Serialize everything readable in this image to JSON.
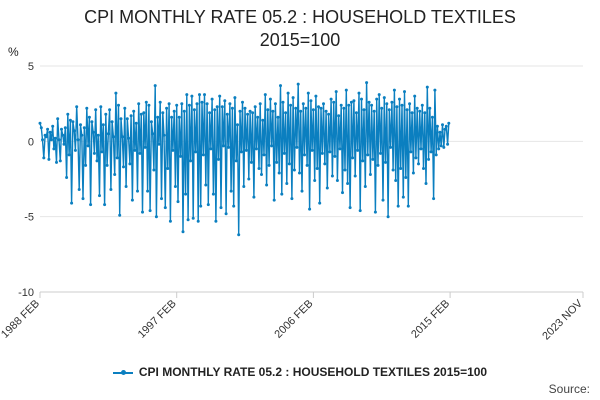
{
  "title_line1": "CPI MONTHLY RATE 05.2 : HOUSEHOLD TEXTILES",
  "title_line2": "2015=100",
  "unit": "%",
  "legend_label": "CPI MONTHLY RATE 05.2 : HOUSEHOLD TEXTILES 2015=100",
  "source": "Source:",
  "colors": {
    "series": "#0b7fc0",
    "grid": "#e6e6e6",
    "axis": "#cccccc",
    "text": "#333333"
  },
  "chart_data": {
    "type": "line",
    "title": "CPI MONTHLY RATE 05.2 : HOUSEHOLD TEXTILES 2015=100",
    "ylabel": "%",
    "ylim": [
      -10,
      5
    ],
    "yticks": [
      5,
      0,
      -5,
      -10
    ],
    "xlim": [
      "1988 FEB",
      "2023 NOV"
    ],
    "xticks": [
      "1988 FEB",
      "1997 FEB",
      "2006 FEB",
      "2015 FEB",
      "2023 NOV"
    ],
    "grid": true,
    "legend": "bottom",
    "series": [
      {
        "name": "CPI MONTHLY RATE 05.2 : HOUSEHOLD TEXTILES 2015=100",
        "start": "1988 FEB",
        "frequency": "monthly",
        "values": [
          1.2,
          0.9,
          0.1,
          -1.1,
          0.4,
          0.3,
          0.8,
          -1.2,
          0.6,
          0.1,
          1.0,
          -0.5,
          0.2,
          -1.4,
          1.5,
          0.1,
          -1.3,
          0.8,
          0.4,
          -0.2,
          0.9,
          -2.4,
          1.8,
          -0.9,
          1.4,
          -4.1,
          1.3,
          0.7,
          -0.6,
          2.3,
          0.1,
          -3.2,
          1.1,
          0.4,
          -3.8,
          0.9,
          -1.6,
          2.2,
          -0.3,
          1.6,
          -4.2,
          1.3,
          0.6,
          -0.8,
          2.1,
          -1.3,
          0.4,
          -3.6,
          2.3,
          -0.7,
          1.1,
          -4.2,
          1.8,
          -1.6,
          0.5,
          2.1,
          -3.2,
          1.3,
          0.3,
          -2.2,
          3.2,
          -1.1,
          2.4,
          -4.9,
          1.5,
          0.3,
          -1.7,
          2.2,
          -3.0,
          1.5,
          0.2,
          -1.5,
          1.7,
          -3.9,
          2.0,
          -0.6,
          1.2,
          -3.3,
          2.5,
          -0.8,
          1.8,
          -4.7,
          1.9,
          -0.4,
          2.6,
          -3.3,
          2.4,
          -4.6,
          1.3,
          0.5,
          -1.9,
          3.7,
          -5.0,
          1.6,
          -0.2,
          2.6,
          -3.8,
          1.9,
          0.4,
          -4.4,
          2.2,
          -1.8,
          2.5,
          -5.3,
          1.6,
          -0.6,
          2.0,
          -3.0,
          2.4,
          -4.0,
          1.6,
          -1.0,
          2.5,
          -6.0,
          2.0,
          -3.5,
          3.1,
          -5.2,
          2.4,
          -1.3,
          3.0,
          -5.1,
          2.1,
          -0.7,
          2.5,
          -5.3,
          3.1,
          -4.3,
          2.6,
          -0.9,
          3.1,
          -2.9,
          2.5,
          -4.2,
          1.9,
          -0.5,
          2.8,
          -3.5,
          2.1,
          -5.3,
          2.3,
          -1.2,
          3.0,
          -4.4,
          2.3,
          -0.3,
          2.7,
          -4.8,
          1.8,
          -0.4,
          2.5,
          -3.3,
          2.2,
          -4.3,
          2.9,
          -1.3,
          1.1,
          -6.2,
          2.0,
          -0.7,
          2.6,
          -3.0,
          2.2,
          -0.6,
          1.8,
          -2.5,
          2.0,
          -1.4,
          1.9,
          -3.7,
          2.3,
          -0.5,
          1.6,
          -1.8,
          2.5,
          -2.2,
          1.4,
          -0.9,
          3.1,
          -2.9,
          2.1,
          -1.6,
          2.8,
          -0.3,
          2.0,
          -3.9,
          2.5,
          -1.4,
          1.6,
          -2.1,
          3.7,
          -3.5,
          2.6,
          -0.8,
          1.9,
          -2.8,
          3.2,
          -1.5,
          2.4,
          -3.8,
          2.9,
          -1.9,
          2.2,
          -0.4,
          3.8,
          -2.1,
          2.0,
          -3.3,
          2.5,
          -0.9,
          2.2,
          -1.6,
          3.2,
          -4.5,
          2.7,
          -0.6,
          2.1,
          -2.6,
          3.0,
          -1.8,
          2.3,
          -4.1,
          2.2,
          -0.8,
          2.5,
          -1.5,
          2.0,
          -3.1,
          1.8,
          -0.7,
          2.8,
          -2.3,
          2.6,
          -1.0,
          3.3,
          -2.6,
          1.7,
          -0.5,
          2.4,
          -3.4,
          2.2,
          -1.9,
          3.4,
          -2.8,
          2.4,
          -4.4,
          2.6,
          -1.1,
          2.7,
          -2.3,
          1.9,
          -0.6,
          3.2,
          -4.6,
          2.8,
          -1.3,
          2.1,
          -3.0,
          3.9,
          -0.9,
          2.6,
          -2.2,
          2.4,
          -1.2,
          2.0,
          -4.7,
          2.8,
          -1.6,
          3.1,
          -0.8,
          2.2,
          -3.9,
          2.9,
          -1.4,
          2.5,
          -5.0,
          2.1,
          -0.4,
          2.6,
          -1.9,
          3.4,
          -2.6,
          2.3,
          -4.3,
          2.8,
          -1.8,
          2.4,
          -3.7,
          3.3,
          -2.4,
          2.1,
          -4.3,
          2.5,
          -0.7,
          1.9,
          -2.1,
          3.0,
          -1.1,
          2.2,
          -1.5,
          2.0,
          -0.5,
          2.4,
          -1.8,
          1.9,
          -2.8,
          3.6,
          -1.2,
          2.2,
          -0.7,
          1.6,
          -3.8,
          3.4,
          -0.9,
          1.0,
          -0.5,
          0.6,
          -0.3,
          1.1,
          -0.4,
          0.8,
          1.0,
          -0.2,
          1.2
        ]
      }
    ]
  }
}
